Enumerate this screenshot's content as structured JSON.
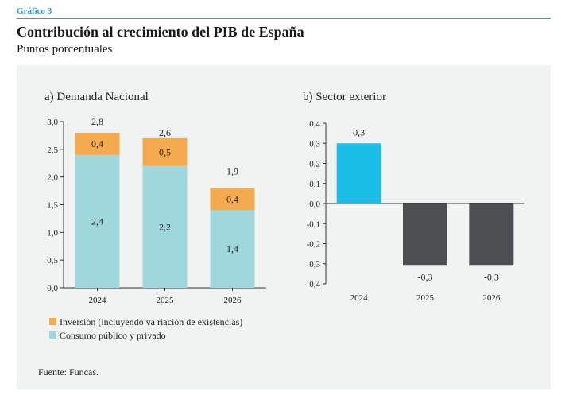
{
  "header": {
    "figure_label": "Gráfico 3",
    "title": "Contribución al crecimiento del PIB de España",
    "subtitle": "Puntos porcentuales"
  },
  "colors": {
    "inversion": "#f4ab50",
    "consumo": "#9fd7dc",
    "exterior_pos": "#19bde6",
    "exterior_neg": "#4c4f51"
  },
  "chart_data": [
    {
      "type": "bar",
      "stacked": true,
      "title": "a) Demanda Nacional",
      "categories": [
        "2024",
        "2025",
        "2026"
      ],
      "series": [
        {
          "name": "Consumo público y privado",
          "values": [
            2.4,
            2.2,
            1.4
          ],
          "labels": [
            "2,4",
            "2,2",
            "1,4"
          ]
        },
        {
          "name": "Inversión (incluyendo va riación de existencias)",
          "values": [
            0.4,
            0.5,
            0.4
          ],
          "labels": [
            "0,4",
            "0,5",
            "0,4"
          ]
        }
      ],
      "totals": [
        2.8,
        2.6,
        1.9
      ],
      "total_labels": [
        "2,8",
        "2,6",
        "1,9"
      ],
      "ylim": [
        0,
        3
      ],
      "yticks": [
        0,
        0.5,
        1,
        1.5,
        2,
        2.5,
        3
      ],
      "ytick_labels": [
        "0,0",
        "0,5",
        "1,0",
        "1,5",
        "2,0",
        "2,5",
        "3,0"
      ]
    },
    {
      "type": "bar",
      "title": "b) Sector exterior",
      "categories": [
        "2024",
        "2025",
        "2026"
      ],
      "values": [
        0.3,
        -0.31,
        -0.31
      ],
      "value_labels": [
        "0,3",
        "-0,3",
        "-0,3"
      ],
      "ylim": [
        -0.4,
        0.4
      ],
      "yticks": [
        -0.4,
        -0.3,
        -0.2,
        -0.1,
        0,
        0.1,
        0.2,
        0.3,
        0.4
      ],
      "ytick_labels": [
        "-0,4",
        "-0,3",
        "-0,2",
        "-0,1",
        "0,0",
        "0,1",
        "0,2",
        "0,3",
        "0,4"
      ]
    }
  ],
  "legend": [
    {
      "label": "Inversión (incluyendo va riación de existencias)",
      "color_key": "inversion"
    },
    {
      "label": "Consumo público y privado",
      "color_key": "consumo"
    }
  ],
  "source": "Fuente: Funcas."
}
